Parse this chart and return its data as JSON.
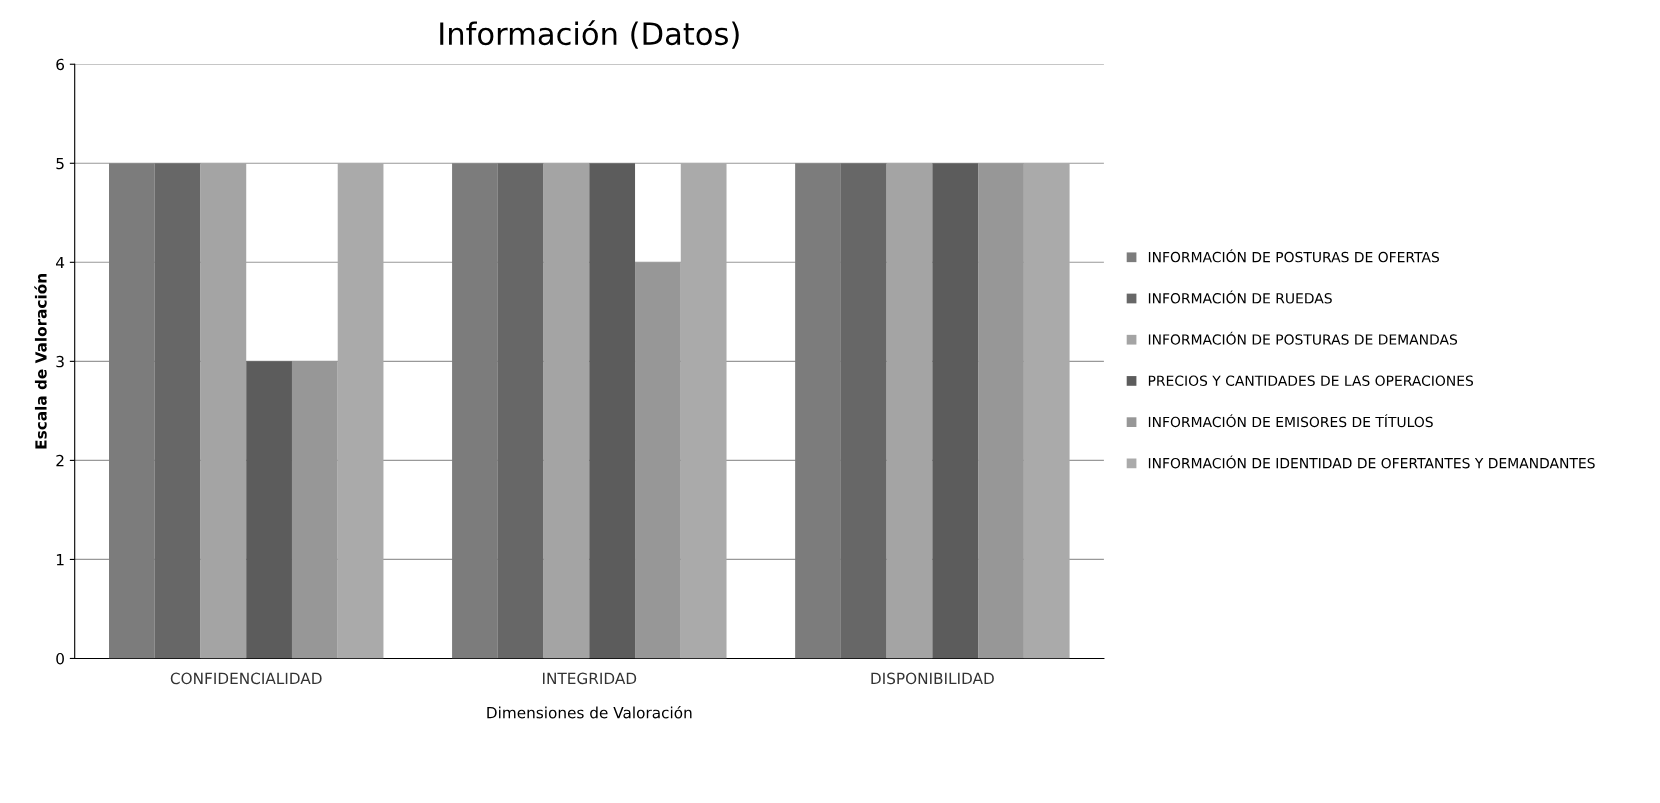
{
  "chart_data": {
    "type": "bar",
    "title": "Información (Datos)",
    "xlabel": "Dimensiones de Valoración",
    "ylabel": "Escala de Valoración",
    "categories": [
      "CONFIDENCIALIDAD",
      "INTEGRIDAD",
      "DISPONIBILIDAD"
    ],
    "series": [
      {
        "name": "INFORMACIÓN DE POSTURAS DE OFERTAS",
        "color": "#7c7c7c",
        "values": [
          5,
          5,
          5
        ]
      },
      {
        "name": "INFORMACIÓN DE RUEDAS",
        "color": "#676767",
        "values": [
          5,
          5,
          5
        ]
      },
      {
        "name": "INFORMACIÓN DE POSTURAS DE DEMANDAS",
        "color": "#a4a4a4",
        "values": [
          5,
          5,
          5
        ]
      },
      {
        "name": "PRECIOS Y CANTIDADES DE LAS OPERACIONES",
        "color": "#5c5c5c",
        "values": [
          3,
          5,
          5
        ]
      },
      {
        "name": "INFORMACIÓN DE EMISORES DE TÍTULOS",
        "color": "#979797",
        "values": [
          3,
          4,
          5
        ]
      },
      {
        "name": "INFORMACIÓN DE IDENTIDAD DE OFERTANTES Y DEMANDANTES",
        "color": "#aaaaaa",
        "values": [
          5,
          5,
          5
        ]
      }
    ],
    "ylim": [
      0,
      6
    ],
    "yticks": [
      0,
      1,
      2,
      3,
      4,
      5,
      6
    ],
    "grid": "y",
    "legend": "right"
  }
}
